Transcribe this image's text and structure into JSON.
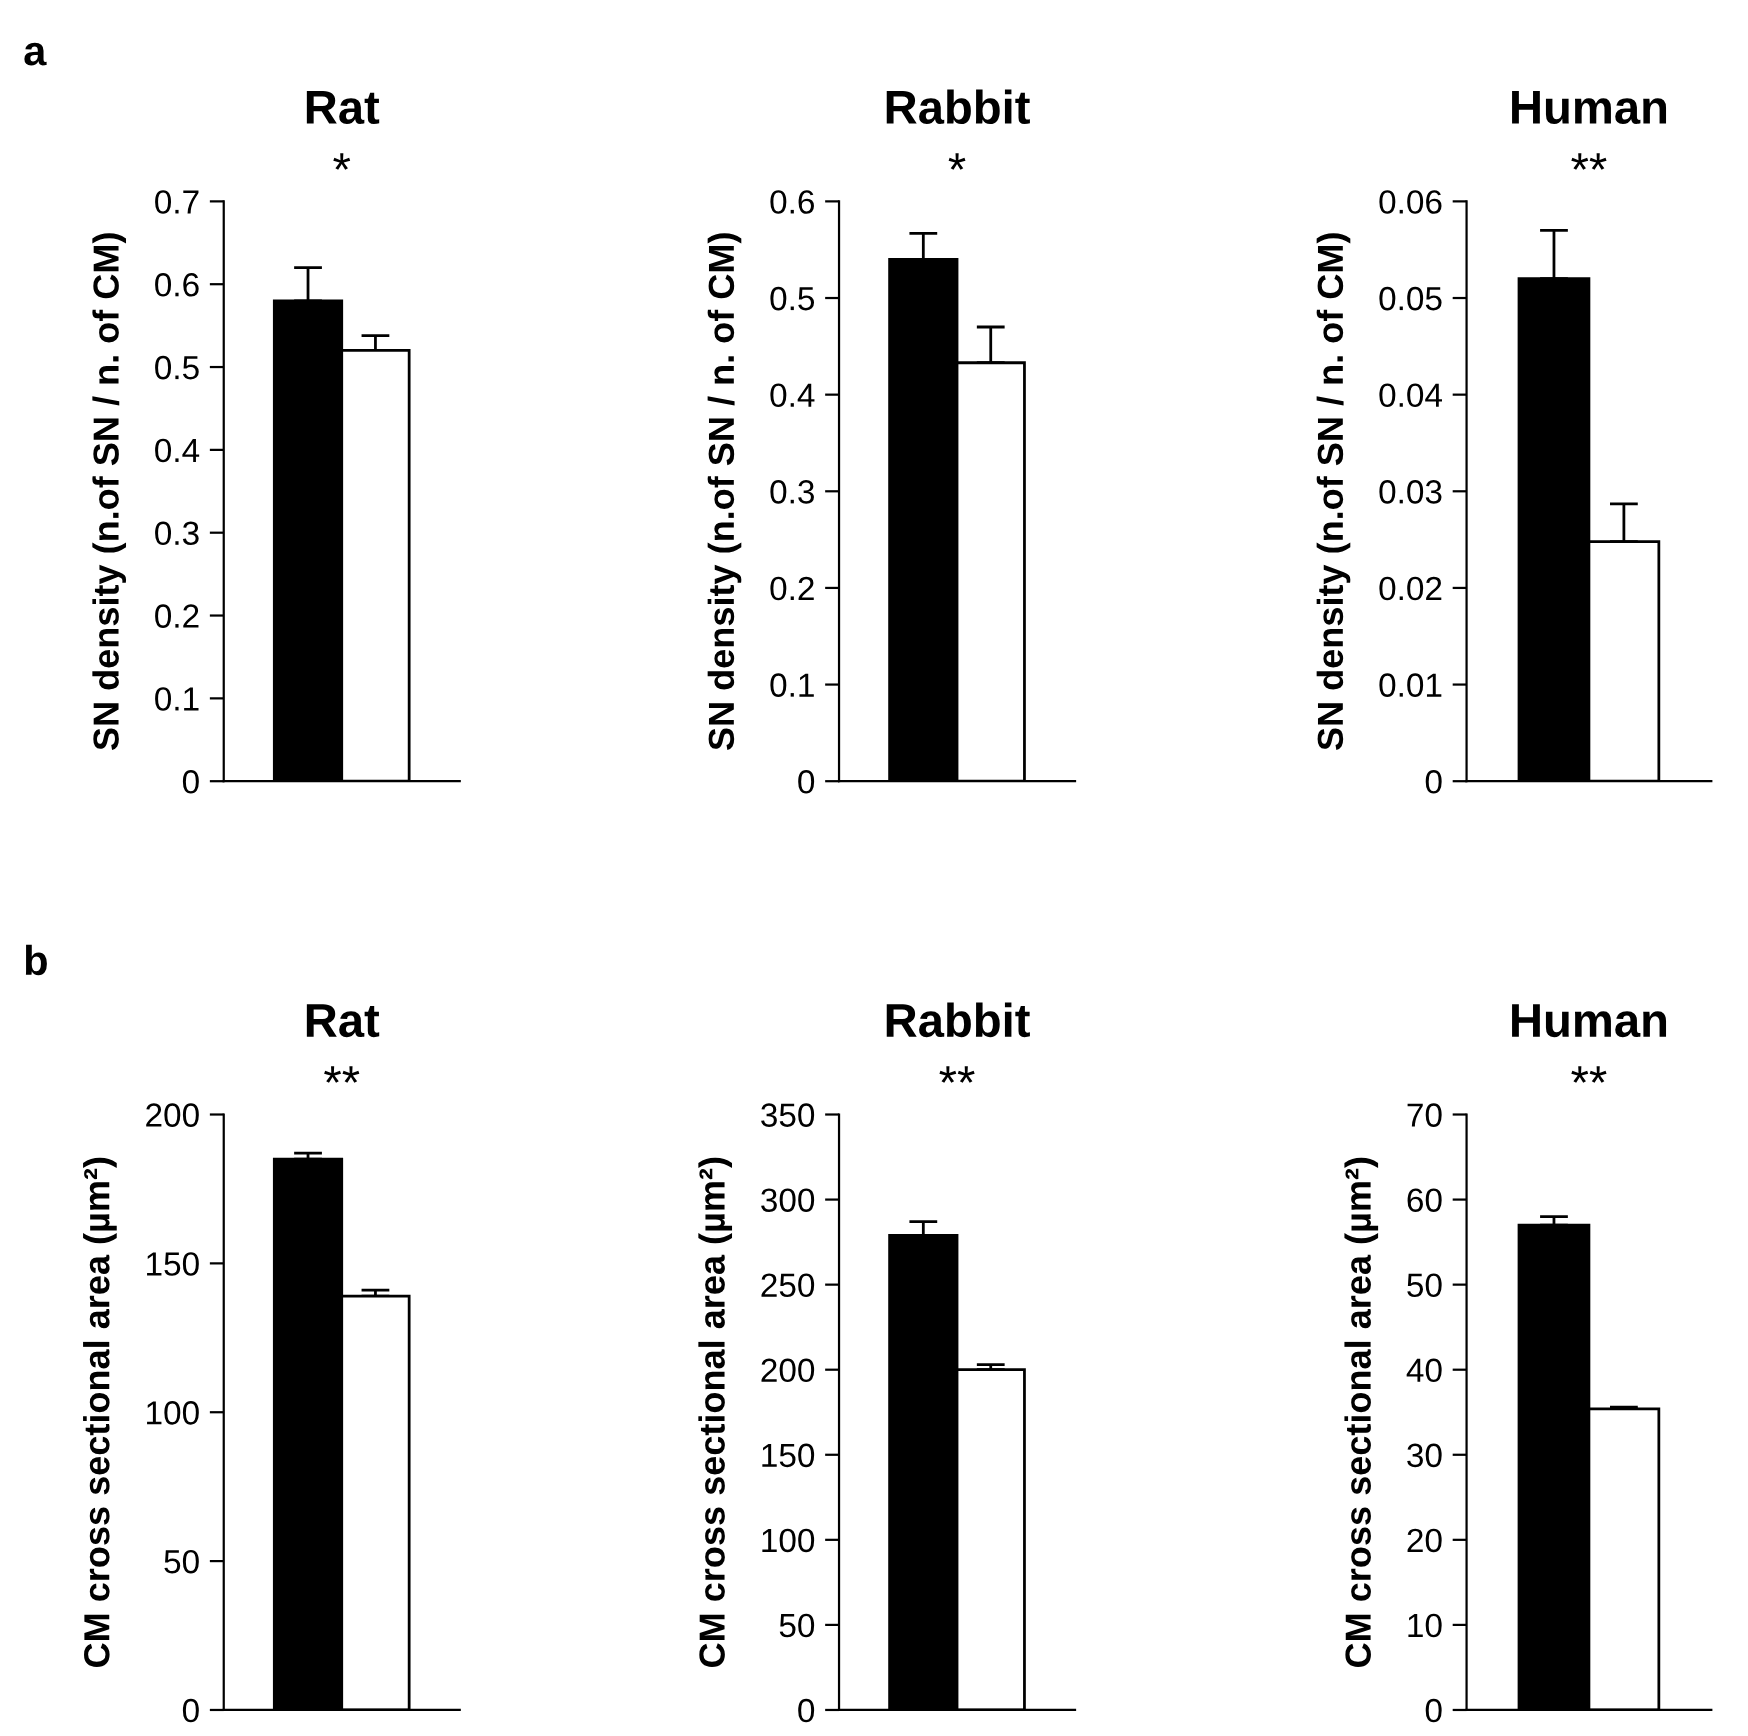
{
  "chart_data": [
    {
      "type": "bar",
      "title": "Rat",
      "ylabel": "SN density (n.of SN / n. of CM)",
      "categories": [
        null,
        null
      ],
      "values": [
        0.58,
        0.52
      ],
      "colors": [
        "#000000",
        "#ffffff"
      ],
      "errors": [
        [
          0.58,
          0.62
        ],
        [
          0.52,
          0.538
        ]
      ],
      "ylim": [
        0,
        0.7
      ],
      "yticks": [
        0,
        0.1,
        0.2,
        0.3,
        0.4,
        0.5,
        0.6,
        0.7
      ],
      "annotations": [
        "a",
        "*"
      ]
    },
    {
      "type": "bar",
      "title": "Rabbit",
      "ylabel": "SN density (n.of SN / n. of CM)",
      "categories": [
        null,
        null
      ],
      "values": [
        0.54,
        0.433
      ],
      "colors": [
        "#000000",
        "#ffffff"
      ],
      "errors": [
        [
          0.54,
          0.567
        ],
        [
          0.433,
          0.47
        ]
      ],
      "ylim": [
        0,
        0.6
      ],
      "yticks": [
        0,
        0.1,
        0.2,
        0.3,
        0.4,
        0.5,
        0.6
      ],
      "annotations": [
        "*"
      ]
    },
    {
      "type": "bar",
      "title": "Human",
      "ylabel": "SN density (n.of SN / n. of CM)",
      "categories": [
        null,
        null
      ],
      "values": [
        0.052,
        0.0248
      ],
      "colors": [
        "#000000",
        "#ffffff"
      ],
      "errors": [
        [
          0.052,
          0.057
        ],
        [
          0.0248,
          0.0287
        ]
      ],
      "ylim": [
        0,
        0.06
      ],
      "yticks": [
        0,
        0.01,
        0.02,
        0.03,
        0.04,
        0.05,
        0.06
      ],
      "annotations": [
        "**"
      ]
    },
    {
      "type": "bar",
      "title": "Rat",
      "ylabel": "CM cross sectional area (µm²)",
      "categories": [
        null,
        null
      ],
      "values": [
        185,
        139
      ],
      "colors": [
        "#000000",
        "#ffffff"
      ],
      "errors": [
        [
          185,
          187
        ],
        [
          139,
          141
        ]
      ],
      "ylim": [
        0,
        200
      ],
      "yticks": [
        0,
        50,
        100,
        150,
        200
      ],
      "annotations": [
        "b",
        "**"
      ]
    },
    {
      "type": "bar",
      "title": "Rabbit",
      "ylabel": "CM cross sectional area (µm²)",
      "categories": [
        null,
        null
      ],
      "values": [
        279,
        200
      ],
      "colors": [
        "#000000",
        "#ffffff"
      ],
      "errors": [
        [
          279,
          287
        ],
        [
          200,
          203
        ]
      ],
      "ylim": [
        0,
        350
      ],
      "yticks": [
        0,
        50,
        100,
        150,
        200,
        250,
        300,
        350
      ],
      "annotations": [
        "**"
      ]
    },
    {
      "type": "bar",
      "title": "Human",
      "ylabel": "CM cross sectional area (µm²)",
      "categories": [
        null,
        null
      ],
      "values": [
        57,
        35.4
      ],
      "colors": [
        "#000000",
        "#ffffff"
      ],
      "errors": [
        [
          57,
          58
        ],
        [
          35.4,
          35.6
        ]
      ],
      "ylim": [
        0,
        70
      ],
      "yticks": [
        0,
        10,
        20,
        30,
        40,
        50,
        60,
        70
      ],
      "annotations": [
        "**"
      ]
    }
  ]
}
